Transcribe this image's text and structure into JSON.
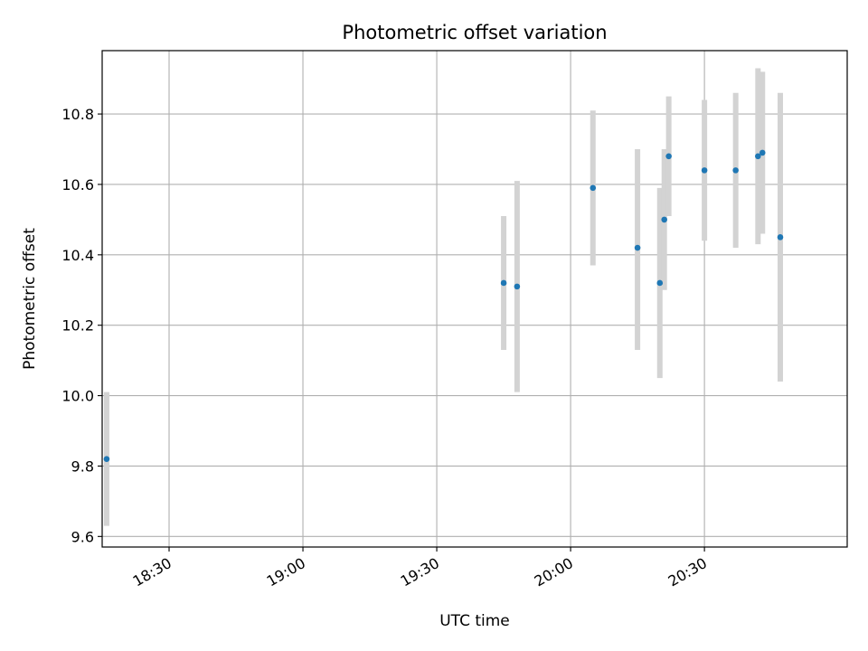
{
  "chart_data": {
    "type": "scatter",
    "title": "Photometric offset variation",
    "xlabel": "UTC time",
    "ylabel": "Photometric offset",
    "xlim": [
      "18:15",
      "21:02"
    ],
    "ylim": [
      9.57,
      10.98
    ],
    "x_ticks": [
      "18:30",
      "19:00",
      "19:30",
      "20:00",
      "20:30"
    ],
    "y_ticks": [
      9.6,
      9.8,
      10.0,
      10.2,
      10.4,
      10.6,
      10.8
    ],
    "y_tick_labels": [
      "9.6",
      "9.8",
      "10.0",
      "10.2",
      "10.4",
      "10.6",
      "10.8"
    ],
    "grid": true,
    "colors": {
      "point": "#1f77b4",
      "errorbar": "#d3d3d3",
      "grid": "#b0b0b0"
    },
    "series": [
      {
        "points": [
          {
            "x": "18:16",
            "y": 9.82,
            "ylow": 9.63,
            "yhigh": 10.01
          },
          {
            "x": "19:45",
            "y": 10.32,
            "ylow": 10.13,
            "yhigh": 10.51
          },
          {
            "x": "19:48",
            "y": 10.31,
            "ylow": 10.01,
            "yhigh": 10.61
          },
          {
            "x": "20:05",
            "y": 10.59,
            "ylow": 10.37,
            "yhigh": 10.81
          },
          {
            "x": "20:15",
            "y": 10.42,
            "ylow": 10.13,
            "yhigh": 10.7
          },
          {
            "x": "20:20",
            "y": 10.32,
            "ylow": 10.05,
            "yhigh": 10.59
          },
          {
            "x": "20:21",
            "y": 10.5,
            "ylow": 10.3,
            "yhigh": 10.7
          },
          {
            "x": "20:22",
            "y": 10.68,
            "ylow": 10.51,
            "yhigh": 10.85
          },
          {
            "x": "20:30",
            "y": 10.64,
            "ylow": 10.44,
            "yhigh": 10.84
          },
          {
            "x": "20:37",
            "y": 10.64,
            "ylow": 10.42,
            "yhigh": 10.86
          },
          {
            "x": "20:42",
            "y": 10.68,
            "ylow": 10.43,
            "yhigh": 10.93
          },
          {
            "x": "20:43",
            "y": 10.69,
            "ylow": 10.46,
            "yhigh": 10.92
          },
          {
            "x": "20:47",
            "y": 10.45,
            "ylow": 10.04,
            "yhigh": 10.86
          }
        ]
      }
    ]
  }
}
